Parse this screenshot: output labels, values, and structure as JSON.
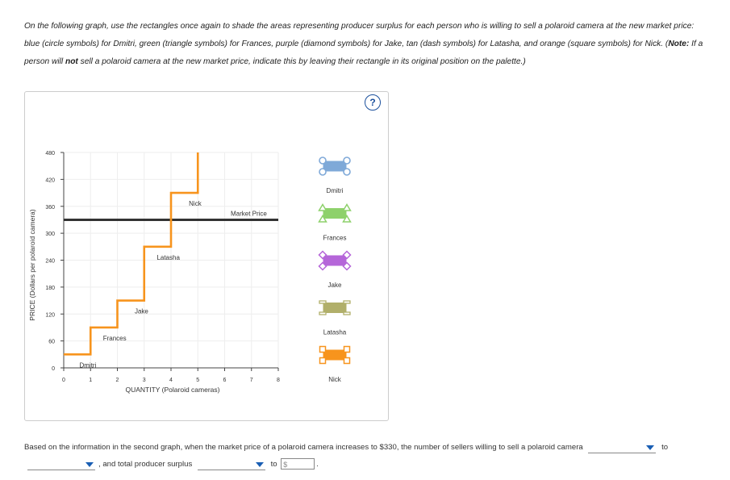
{
  "instructions": {
    "p1": "On the following graph, use the rectangles once again to shade the areas representing producer surplus for each person who is willing to sell a polaroid camera at the new market price: blue (circle symbols) for Dmitri, green (triangle symbols) for Frances, purple (diamond symbols) for Jake, tan (dash symbols) for Latasha, and orange (square symbols) for Nick. (",
    "note_label": "Note:",
    "p2": " If a person will ",
    "not_word": "not",
    "p3": " sell a polaroid camera at the new market price, indicate this by leaving their rectangle in its original position on the palette.)"
  },
  "help_icon": "?",
  "chart_data": {
    "type": "line",
    "xlabel": "QUANTITY (Polaroid cameras)",
    "ylabel": "PRICE (Dollars per polaroid camera)",
    "xlim": [
      0,
      8
    ],
    "ylim": [
      0,
      480
    ],
    "xticks": [
      0,
      1,
      2,
      3,
      4,
      5,
      6,
      7,
      8
    ],
    "yticks": [
      0,
      60,
      120,
      180,
      240,
      300,
      360,
      420,
      480
    ],
    "supply_steps": [
      {
        "seller": "Dmitri",
        "from": 0,
        "to": 1,
        "price": 30
      },
      {
        "seller": "Frances",
        "from": 1,
        "to": 2,
        "price": 90
      },
      {
        "seller": "Jake",
        "from": 2,
        "to": 3,
        "price": 150
      },
      {
        "seller": "Latasha",
        "from": 3,
        "to": 4,
        "price": 270
      },
      {
        "seller": "Nick",
        "from": 4,
        "to": 5,
        "price": 390
      }
    ],
    "market_price": {
      "value": 330,
      "label": "Market Price"
    },
    "colors": {
      "supply": "#f7941d",
      "market": "#333333"
    }
  },
  "palette": [
    {
      "name": "Dmitri",
      "color": "#7fa9d8",
      "symbol": "circle"
    },
    {
      "name": "Frances",
      "color": "#8ed16b",
      "symbol": "triangle"
    },
    {
      "name": "Jake",
      "color": "#b566d9",
      "symbol": "diamond"
    },
    {
      "name": "Latasha",
      "color": "#b1af6a",
      "symbol": "dash"
    },
    {
      "name": "Nick",
      "color": "#f7941d",
      "symbol": "square"
    }
  ],
  "question": {
    "text1": "Based on the information in the second graph, when the market price of a polaroid camera increases to $330, the number of sellers willing to sell a polaroid camera",
    "to1": "to",
    "text2": ", and total producer surplus",
    "to2": "to",
    "currency": "$",
    "end": "."
  }
}
